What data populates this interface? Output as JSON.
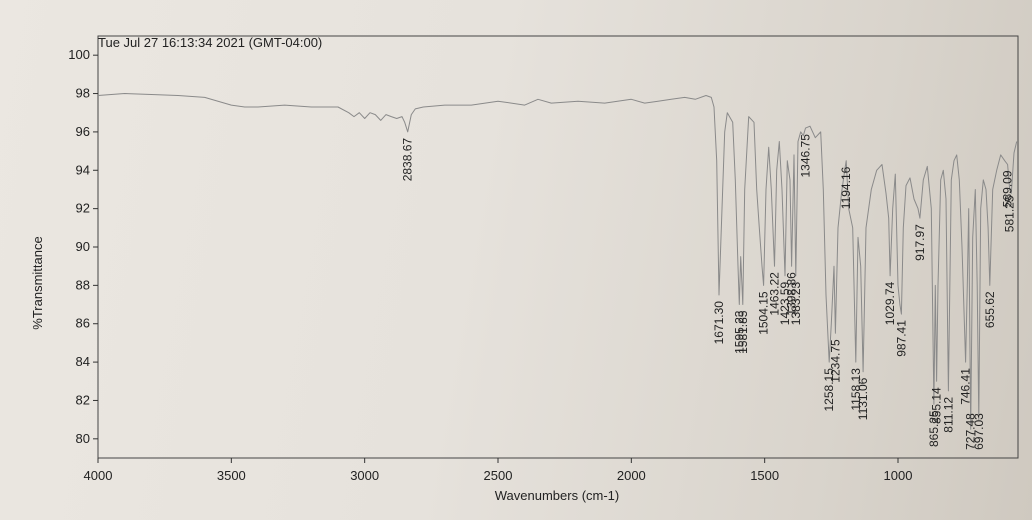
{
  "chart_data": {
    "type": "line",
    "header": "Tue Jul 27 16:13:34 2021 (GMT-04:00)",
    "xlabel": "Wavenumbers (cm-1)",
    "ylabel": "%Transmittance",
    "xlim": [
      4000,
      550
    ],
    "ylim": [
      79,
      101
    ],
    "x_ticks": [
      4000,
      3500,
      3000,
      2500,
      2000,
      1500,
      1000
    ],
    "y_ticks": [
      80,
      82,
      84,
      86,
      88,
      90,
      92,
      94,
      96,
      98,
      100
    ],
    "grid": false,
    "line_color": "#8a8a8a",
    "series": [
      {
        "x": [
          4000,
          3900,
          3800,
          3700,
          3600,
          3500,
          3450,
          3400,
          3300,
          3200,
          3100,
          3060,
          3040,
          3020,
          3000,
          2980,
          2960,
          2940,
          2920,
          2900,
          2880,
          2860,
          2850,
          2838.67,
          2825,
          2810,
          2780,
          2700,
          2600,
          2500,
          2400,
          2350,
          2300,
          2200,
          2100,
          2000,
          1950,
          1900,
          1850,
          1800,
          1760,
          1720,
          1700,
          1690,
          1680,
          1671.3,
          1660,
          1650,
          1640,
          1620,
          1610,
          1600,
          1595.23,
          1590,
          1581.85,
          1575,
          1560,
          1540,
          1530,
          1520,
          1510,
          1504.15,
          1495,
          1485,
          1475,
          1463.22,
          1455,
          1445,
          1435,
          1423.59,
          1415,
          1405,
          1398.86,
          1390,
          1383.23,
          1375,
          1365,
          1355,
          1346.75,
          1330,
          1310,
          1290,
          1280,
          1270,
          1262,
          1258.15,
          1250,
          1240,
          1234.75,
          1225,
          1212,
          1200,
          1194.16,
          1185,
          1170,
          1158.13,
          1150,
          1140,
          1131.06,
          1120,
          1100,
          1080,
          1060,
          1045,
          1035,
          1029.74,
          1020,
          1010,
          1000,
          993,
          987.41,
          980,
          970,
          955,
          940,
          925,
          917.97,
          905,
          890,
          875,
          865.25,
          860,
          855.14,
          850,
          840,
          830,
          820,
          811.12,
          800,
          790,
          780,
          770,
          760,
          750,
          746.41,
          740,
          735,
          727.48,
          720,
          710,
          703,
          697.03,
          690,
          680,
          670,
          662,
          655.62,
          645,
          630,
          615,
          600,
          589.09,
          581.25,
          575,
          565,
          555
        ],
        "y": [
          97.9,
          98.0,
          97.95,
          97.9,
          97.8,
          97.4,
          97.3,
          97.3,
          97.4,
          97.3,
          97.3,
          97.0,
          96.8,
          97.0,
          96.7,
          97.0,
          96.9,
          96.6,
          96.9,
          96.8,
          96.7,
          96.8,
          96.5,
          96.0,
          96.9,
          97.2,
          97.3,
          97.4,
          97.4,
          97.6,
          97.4,
          97.7,
          97.5,
          97.6,
          97.5,
          97.7,
          97.5,
          97.6,
          97.7,
          97.8,
          97.7,
          97.9,
          97.8,
          97.3,
          94.5,
          87.5,
          92.0,
          96.0,
          97.0,
          96.5,
          93.5,
          89.0,
          87.0,
          89.5,
          87.0,
          93.0,
          96.8,
          96.5,
          93.0,
          91.0,
          89.0,
          88.0,
          93.0,
          95.2,
          93.0,
          89.0,
          94.0,
          95.5,
          93.0,
          88.5,
          94.5,
          93.5,
          89.0,
          94.8,
          88.5,
          95.5,
          96.0,
          95.8,
          96.2,
          96.3,
          95.7,
          96.0,
          93.0,
          87.5,
          85.2,
          84.0,
          86.0,
          89.0,
          85.5,
          91.0,
          92.8,
          94.0,
          94.5,
          92.0,
          91.0,
          84.0,
          90.5,
          89.0,
          83.5,
          91.0,
          93.0,
          94.0,
          94.3,
          92.8,
          91.5,
          88.5,
          92.0,
          93.8,
          88.0,
          87.0,
          86.5,
          91.0,
          93.2,
          93.6,
          92.5,
          92.0,
          91.5,
          93.5,
          94.2,
          92.0,
          81.8,
          88.0,
          83.0,
          88.0,
          93.5,
          94.0,
          92.5,
          82.5,
          93.5,
          94.5,
          94.8,
          93.5,
          90.0,
          85.5,
          84.0,
          88.0,
          92.0,
          80.5,
          90.5,
          93.0,
          88.0,
          81.0,
          92.0,
          93.5,
          93.0,
          91.0,
          88.0,
          93.0,
          94.0,
          94.8,
          94.5,
          94.3,
          93.0,
          92.8,
          94.9,
          95.5
        ]
      }
    ],
    "annotations": [
      {
        "label": "2838.67",
        "x": 2838.67
      },
      {
        "label": "1671.30",
        "x": 1671.3
      },
      {
        "label": "1595.23",
        "x": 1595.23
      },
      {
        "label": "1581.85",
        "x": 1581.85
      },
      {
        "label": "1504.15",
        "x": 1504.15
      },
      {
        "label": "1463.22",
        "x": 1463.22
      },
      {
        "label": "1423.59",
        "x": 1423.59
      },
      {
        "label": "1398.86",
        "x": 1398.86
      },
      {
        "label": "1383.23",
        "x": 1383.23
      },
      {
        "label": "1346.75",
        "x": 1346.75
      },
      {
        "label": "1258.15",
        "x": 1258.15
      },
      {
        "label": "1234.75",
        "x": 1234.75
      },
      {
        "label": "1194.16",
        "x": 1194.16
      },
      {
        "label": "1158.13",
        "x": 1158.13
      },
      {
        "label": "1131.06",
        "x": 1131.06
      },
      {
        "label": "1029.74",
        "x": 1029.74
      },
      {
        "label": "987.41",
        "x": 987.41
      },
      {
        "label": "917.97",
        "x": 917.97
      },
      {
        "label": "865.25",
        "x": 865.25
      },
      {
        "label": "855.14",
        "x": 855.14
      },
      {
        "label": "811.12",
        "x": 811.12
      },
      {
        "label": "746.41",
        "x": 746.41
      },
      {
        "label": "727.48",
        "x": 727.48
      },
      {
        "label": "697.03",
        "x": 697.03
      },
      {
        "label": "655.62",
        "x": 655.62
      },
      {
        "label": "589.09",
        "x": 589.09
      },
      {
        "label": "581.25",
        "x": 581.25
      }
    ]
  }
}
